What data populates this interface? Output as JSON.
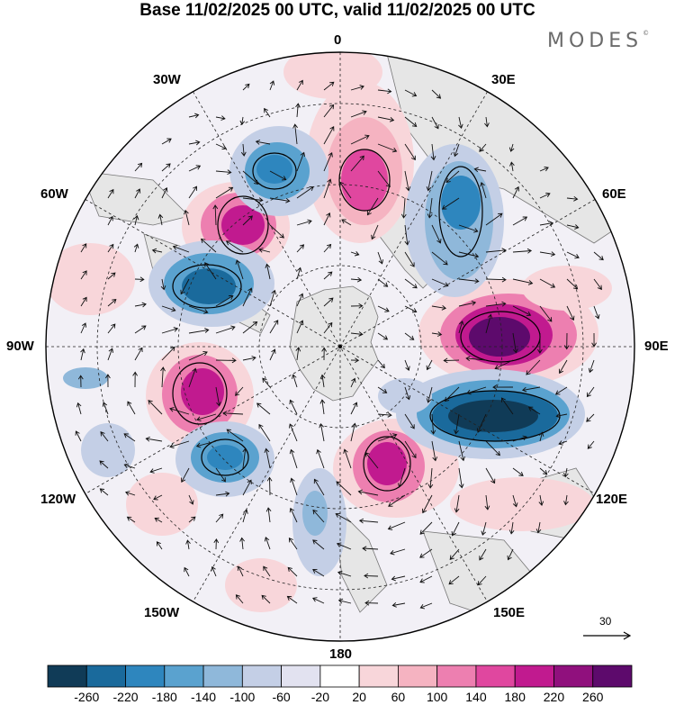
{
  "title": "Base 11/02/2025 00 UTC, valid 11/02/2025 00 UTC",
  "brand": "MODES",
  "brand_mark": "©",
  "lon_labels": {
    "n0": "0",
    "n30e": "30E",
    "n60e": "60E",
    "n90e": "90E",
    "n120e": "120E",
    "n150e": "150E",
    "n180": "180",
    "n150w": "150W",
    "n120w": "120W",
    "n90w": "90W",
    "n60w": "60W",
    "n30w": "30W"
  },
  "reference_vector": "30",
  "colorbar": {
    "ticks": [
      "-260",
      "-220",
      "-180",
      "-140",
      "-100",
      "-60",
      "-20",
      "20",
      "60",
      "100",
      "140",
      "180",
      "220",
      "260"
    ],
    "colors": [
      "#103b57",
      "#1a6a9c",
      "#2e86be",
      "#5aa2cf",
      "#8fb8da",
      "#c4cfe6",
      "#e2e2f0",
      "#ffffff",
      "#f8d6da",
      "#f5b3c1",
      "#ed7fb0",
      "#e0479f",
      "#c11a8f",
      "#90107d",
      "#5d0a6c"
    ]
  },
  "colors": {
    "land_fill": "#e9e9e9",
    "coast": "#777777",
    "positive_accent": "#c11a8f",
    "negative_accent": "#1a6a9c"
  }
}
